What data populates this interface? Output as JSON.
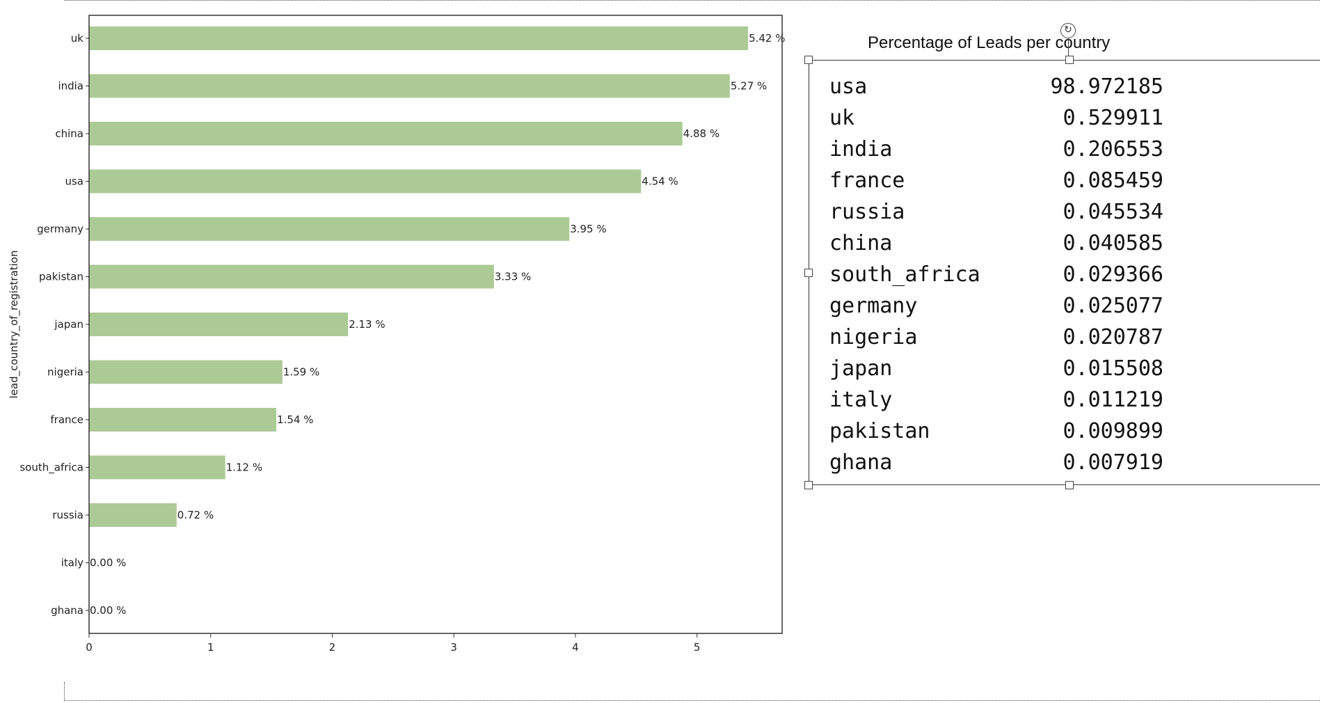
{
  "chart_data": {
    "type": "bar",
    "orientation": "horizontal",
    "categories": [
      "uk",
      "india",
      "china",
      "usa",
      "germany",
      "pakistan",
      "japan",
      "nigeria",
      "france",
      "south_africa",
      "russia",
      "italy",
      "ghana"
    ],
    "values": [
      5.42,
      5.27,
      4.88,
      4.54,
      3.95,
      3.33,
      2.13,
      1.59,
      1.54,
      1.12,
      0.72,
      0.0,
      0.0
    ],
    "data_labels": [
      "5.42 %",
      "5.27 %",
      "4.88 %",
      "4.54 %",
      "3.95 %",
      "3.33 %",
      "2.13 %",
      "1.59 %",
      "1.54 %",
      "1.12 %",
      "0.72 %",
      "0.00 %",
      "0.00 %"
    ],
    "title": "",
    "xlabel": "",
    "ylabel": "lead_country_of_registration",
    "xlim": [
      0,
      5.7
    ],
    "xticks": [
      "0",
      "1",
      "2",
      "3",
      "4",
      "5"
    ],
    "grid": false,
    "bar_color": "#acca96"
  },
  "table": {
    "title": "Percentage of Leads per country",
    "rows": [
      {
        "name": "usa",
        "value": "98.972185"
      },
      {
        "name": "uk",
        "value": "0.529911"
      },
      {
        "name": "india",
        "value": "0.206553"
      },
      {
        "name": "france",
        "value": "0.085459"
      },
      {
        "name": "russia",
        "value": "0.045534"
      },
      {
        "name": "china",
        "value": "0.040585"
      },
      {
        "name": "south_africa",
        "value": "0.029366"
      },
      {
        "name": "germany",
        "value": "0.025077"
      },
      {
        "name": "nigeria",
        "value": "0.020787"
      },
      {
        "name": "japan",
        "value": "0.015508"
      },
      {
        "name": "italy",
        "value": "0.011219"
      },
      {
        "name": "pakistan",
        "value": "0.009899"
      },
      {
        "name": "ghana",
        "value": "0.007919"
      }
    ]
  },
  "icons": {
    "rotate": "rotate-icon"
  }
}
